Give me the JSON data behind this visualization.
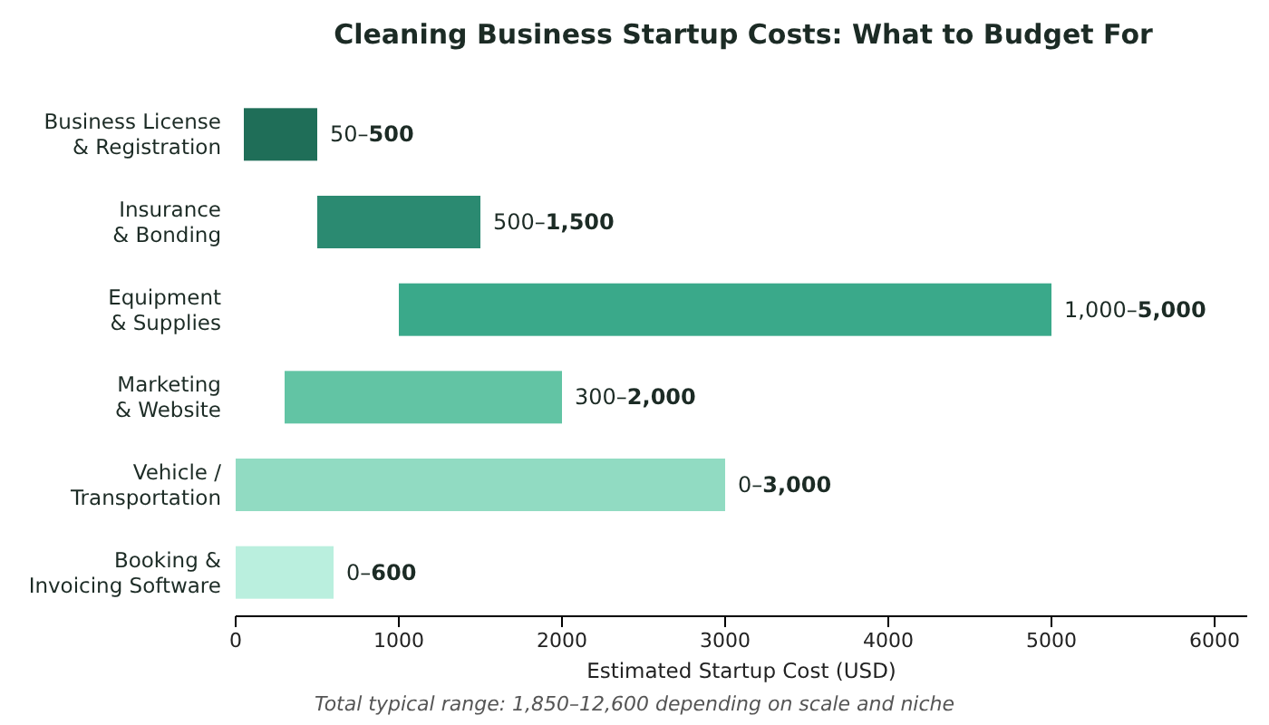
{
  "chart_data": {
    "type": "bar",
    "orientation": "horizontal",
    "title": "Cleaning Business Startup Costs: What to Budget For",
    "xlabel": "Estimated Startup Cost (USD)",
    "categories": [
      "Business License\n& Registration",
      "Insurance\n& Bonding",
      "Equipment\n& Supplies",
      "Marketing\n& Website",
      "Vehicle /\nTransportation",
      "Booking &\nInvoicing Software"
    ],
    "base": [
      50,
      500,
      1000,
      300,
      0,
      0
    ],
    "values": [
      450,
      1000,
      4000,
      1700,
      3000,
      600
    ],
    "colors": [
      "#1f6e58",
      "#2b8a71",
      "#3aa98a",
      "#62c4a4",
      "#91dbc2",
      "#baefde"
    ],
    "value_labels": [
      "50–500",
      "500–1,500",
      "1,000–5,000",
      "300–2,000",
      "0–3,000",
      "0–600"
    ],
    "xlim": [
      0,
      6200
    ],
    "xticks": [
      0,
      1000,
      2000,
      3000,
      4000,
      5000,
      6000
    ],
    "annotations": [
      "Total typical range: 1,850–12,600 depending on scale and niche"
    ]
  }
}
